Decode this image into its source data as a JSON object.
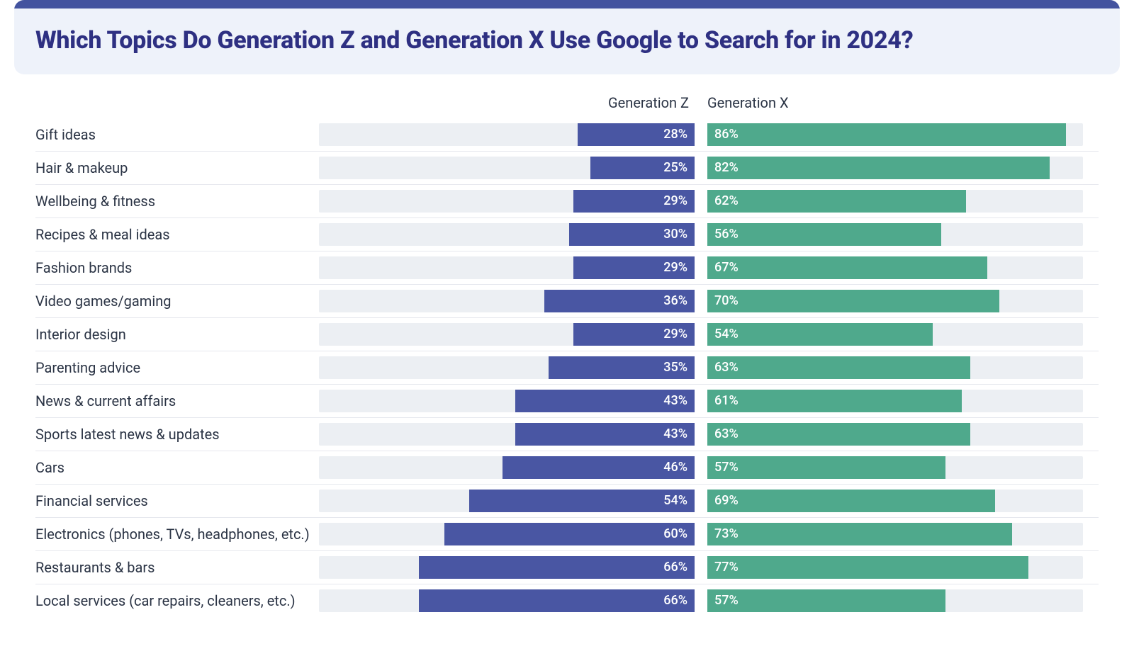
{
  "chart": {
    "type": "bar",
    "title": "Which Topics Do Generation Z and Generation X Use Google to Search for in 2024?",
    "title_color": "#2e3082",
    "title_fontsize": 34,
    "title_bg": "#eef2fa",
    "header_bar_color": "#43539f",
    "body_text_color": "#2b3445",
    "header_label_z": "Generation Z",
    "header_label_x": "Generation X",
    "track_bg": "#eceff3",
    "bar_color_z": "#4956a3",
    "bar_color_x": "#4fa98c",
    "max_percent": 90,
    "row_divider_color": "#e6e8ee",
    "rows": [
      {
        "label": "Gift ideas",
        "z": 28,
        "x": 86
      },
      {
        "label": "Hair & makeup",
        "z": 25,
        "x": 82
      },
      {
        "label": "Wellbeing & fitness",
        "z": 29,
        "x": 62
      },
      {
        "label": "Recipes & meal ideas",
        "z": 30,
        "x": 56
      },
      {
        "label": "Fashion brands",
        "z": 29,
        "x": 67
      },
      {
        "label": "Video games/gaming",
        "z": 36,
        "x": 70
      },
      {
        "label": "Interior design",
        "z": 29,
        "x": 54
      },
      {
        "label": "Parenting advice",
        "z": 35,
        "x": 63
      },
      {
        "label": "News & current affairs",
        "z": 43,
        "x": 61
      },
      {
        "label": "Sports latest news & updates",
        "z": 43,
        "x": 63
      },
      {
        "label": "Cars",
        "z": 46,
        "x": 57
      },
      {
        "label": "Financial services",
        "z": 54,
        "x": 69
      },
      {
        "label": "Electronics (phones, TVs, headphones, etc.)",
        "z": 60,
        "x": 73
      },
      {
        "label": "Restaurants & bars",
        "z": 66,
        "x": 77
      },
      {
        "label": "Local services (car repairs, cleaners, etc.)",
        "z": 66,
        "x": 57
      }
    ]
  }
}
